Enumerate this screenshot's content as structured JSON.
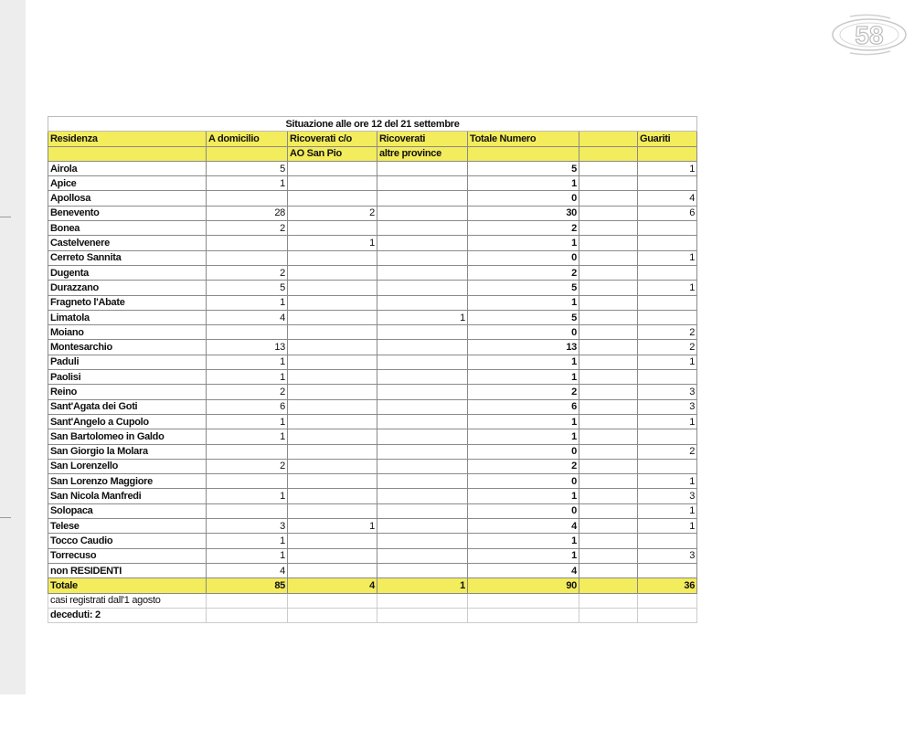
{
  "title": "Situazione alle ore 12 del 21 settembre",
  "headers": {
    "row1": [
      "Residenza",
      "A domicilio",
      "Ricoverati c/o",
      "Ricoverati",
      "Totale Numero",
      "",
      "Guariti"
    ],
    "row2": [
      "",
      "",
      "AO San Pio",
      "altre province",
      "",
      "",
      ""
    ]
  },
  "rows": [
    [
      "Airola",
      "5",
      "",
      "",
      "5",
      "",
      "1"
    ],
    [
      "Apice",
      "1",
      "",
      "",
      "1",
      "",
      ""
    ],
    [
      "Apollosa",
      "",
      "",
      "",
      "0",
      "",
      "4"
    ],
    [
      "Benevento",
      "28",
      "2",
      "",
      "30",
      "",
      "6"
    ],
    [
      "Bonea",
      "2",
      "",
      "",
      "2",
      "",
      ""
    ],
    [
      "Castelvenere",
      "",
      "1",
      "",
      "1",
      "",
      ""
    ],
    [
      "Cerreto Sannita",
      "",
      "",
      "",
      "0",
      "",
      "1"
    ],
    [
      "Dugenta",
      "2",
      "",
      "",
      "2",
      "",
      ""
    ],
    [
      "Durazzano",
      "5",
      "",
      "",
      "5",
      "",
      "1"
    ],
    [
      "Fragneto l'Abate",
      "1",
      "",
      "",
      "1",
      "",
      ""
    ],
    [
      "Limatola",
      "4",
      "",
      "1",
      "5",
      "",
      ""
    ],
    [
      "Moiano",
      "",
      "",
      "",
      "0",
      "",
      "2"
    ],
    [
      "Montesarchio",
      "13",
      "",
      "",
      "13",
      "",
      "2"
    ],
    [
      "Paduli",
      "1",
      "",
      "",
      "1",
      "",
      "1"
    ],
    [
      "Paolisi",
      "1",
      "",
      "",
      "1",
      "",
      ""
    ],
    [
      "Reino",
      "2",
      "",
      "",
      "2",
      "",
      "3"
    ],
    [
      "Sant'Agata dei Goti",
      "6",
      "",
      "",
      "6",
      "",
      "3"
    ],
    [
      "Sant'Angelo a Cupolo",
      "1",
      "",
      "",
      "1",
      "",
      "1"
    ],
    [
      "San Bartolomeo in Galdo",
      "1",
      "",
      "",
      "1",
      "",
      ""
    ],
    [
      "San Giorgio la Molara",
      "",
      "",
      "",
      "0",
      "",
      "2"
    ],
    [
      "San Lorenzello",
      "2",
      "",
      "",
      "2",
      "",
      ""
    ],
    [
      "San Lorenzo Maggiore",
      "",
      "",
      "",
      "0",
      "",
      "1"
    ],
    [
      "San Nicola Manfredi",
      "1",
      "",
      "",
      "1",
      "",
      "3"
    ],
    [
      "Solopaca",
      "",
      "",
      "",
      "0",
      "",
      "1"
    ],
    [
      "Telese",
      "3",
      "1",
      "",
      "4",
      "",
      "1"
    ],
    [
      "Tocco Caudio",
      "1",
      "",
      "",
      "1",
      "",
      ""
    ],
    [
      "Torrecuso",
      "1",
      "",
      "",
      "1",
      "",
      "3"
    ],
    [
      "non RESIDENTI",
      "4",
      "",
      "",
      "4",
      "",
      ""
    ]
  ],
  "total": [
    "Totale",
    "85",
    "4",
    "1",
    "90",
    "",
    "36"
  ],
  "notes": [
    "casi registrati dall'1 agosto",
    "deceduti: 2"
  ],
  "logo_text": "58",
  "colors": {
    "header_yellow": "#f3ec5c",
    "side_strip": "#ededed"
  }
}
